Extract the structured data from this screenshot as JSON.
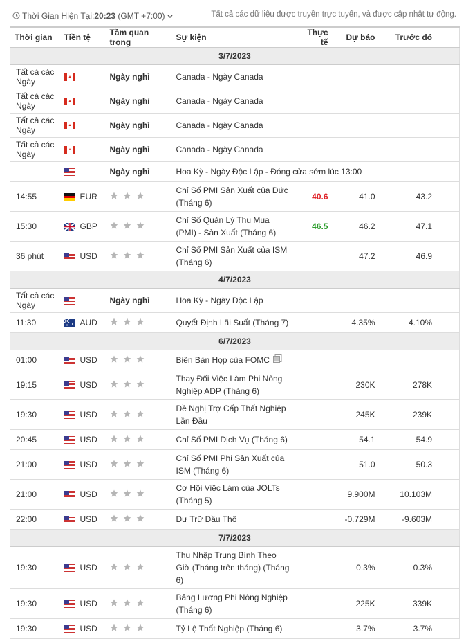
{
  "header": {
    "time_label": "Thời Gian Hiện Tại:",
    "time": "20:23",
    "timezone": "(GMT +7:00)",
    "note": "Tất cả các dữ liệu được truyền trực tuyến, và được cập nhật tự động."
  },
  "table": {
    "columns": [
      "Thời gian",
      "Tiền tệ",
      "Tầm quan trọng",
      "Sự kiện",
      "Thực tế",
      "Dự báo",
      "Trước đó"
    ],
    "sections": [
      {
        "date": "3/7/2023",
        "rows": [
          {
            "time": "Tất cả các Ngày",
            "flag": "ca",
            "importance": "Ngày nghỉ",
            "event": "Canada - Ngày Canada"
          },
          {
            "time": "Tất cả các Ngày",
            "flag": "ca",
            "importance": "Ngày nghỉ",
            "event": "Canada - Ngày Canada"
          },
          {
            "time": "Tất cả các Ngày",
            "flag": "ca",
            "importance": "Ngày nghỉ",
            "event": "Canada - Ngày Canada"
          },
          {
            "time": "Tất cả các Ngày",
            "flag": "ca",
            "importance": "Ngày nghỉ",
            "event": "Canada - Ngày Canada"
          },
          {
            "flag": "us",
            "importance": "Ngày nghỉ",
            "event": "Hoa Kỳ - Ngày Độc Lập - Đóng cửa sớm lúc 13:00"
          },
          {
            "time": "14:55",
            "flag": "de",
            "currency": "EUR",
            "event": "Chỉ Số PMI Sản Xuất của Đức (Tháng 6)",
            "actual": "40.6",
            "actual_color": "#e0262b",
            "forecast": "41.0",
            "previous": "43.2"
          },
          {
            "time": "15:30",
            "flag": "gb",
            "currency": "GBP",
            "event": "Chỉ Số Quản Lý Thu Mua (PMI) - Sản Xuất (Tháng 6)",
            "actual": "46.5",
            "actual_color": "#2e9e2e",
            "forecast": "46.2",
            "previous": "47.1"
          },
          {
            "time": "36 phút",
            "flag": "us",
            "currency": "USD",
            "event": "Chỉ Số PMI Sản Xuất của ISM (Tháng 6)",
            "forecast": "47.2",
            "previous": "46.9"
          }
        ]
      },
      {
        "date": "4/7/2023",
        "rows": [
          {
            "time": "Tất cả các Ngày",
            "flag": "us",
            "importance": "Ngày nghỉ",
            "event": "Hoa Kỳ - Ngày Độc Lập"
          },
          {
            "time": "11:30",
            "flag": "au",
            "currency": "AUD",
            "event": "Quyết Định Lãi Suất (Tháng 7)",
            "forecast": "4.35%",
            "previous": "4.10%"
          }
        ]
      },
      {
        "date": "6/7/2023",
        "rows": [
          {
            "time": "01:00",
            "flag": "us",
            "currency": "USD",
            "event": "Biên Bản Họp của FOMC",
            "document_icon": true
          },
          {
            "time": "19:15",
            "flag": "us",
            "currency": "USD",
            "event": "Thay Đổi Việc Làm Phi Nông Nghiệp ADP (Tháng 6)",
            "forecast": "230K",
            "previous": "278K"
          },
          {
            "time": "19:30",
            "flag": "us",
            "currency": "USD",
            "event": "Đề Nghị Trợ Cấp Thất Nghiệp Lần Đầu",
            "forecast": "245K",
            "previous": "239K"
          },
          {
            "time": "20:45",
            "flag": "us",
            "currency": "USD",
            "event": "Chỉ Số PMI Dịch Vụ (Tháng 6)",
            "forecast": "54.1",
            "previous": "54.9"
          },
          {
            "time": "21:00",
            "flag": "us",
            "currency": "USD",
            "event": "Chỉ Số PMI Phi Sản Xuất của ISM (Tháng 6)",
            "forecast": "51.0",
            "previous": "50.3"
          },
          {
            "time": "21:00",
            "flag": "us",
            "currency": "USD",
            "event": "Cơ Hội Việc Làm của JOLTs (Tháng 5)",
            "forecast": "9.900M",
            "previous": "10.103M"
          },
          {
            "time": "22:00",
            "flag": "us",
            "currency": "USD",
            "event": "Dự Trữ Dầu Thô",
            "forecast": "-0.729M",
            "previous": "-9.603M"
          }
        ]
      },
      {
        "date": "7/7/2023",
        "rows": [
          {
            "time": "19:30",
            "flag": "us",
            "currency": "USD",
            "event": "Thu Nhập Trung Bình Theo Giờ (Tháng trên tháng) (Tháng 6)",
            "forecast": "0.3%",
            "previous": "0.3%"
          },
          {
            "time": "19:30",
            "flag": "us",
            "currency": "USD",
            "event": "Bảng Lương Phi Nông Nghiệp (Tháng 6)",
            "forecast": "225K",
            "previous": "339K"
          },
          {
            "time": "19:30",
            "flag": "us",
            "currency": "USD",
            "event": "Tỷ Lệ Thất Nghiệp (Tháng 6)",
            "forecast": "3.7%",
            "previous": "3.7%"
          }
        ]
      }
    ]
  }
}
